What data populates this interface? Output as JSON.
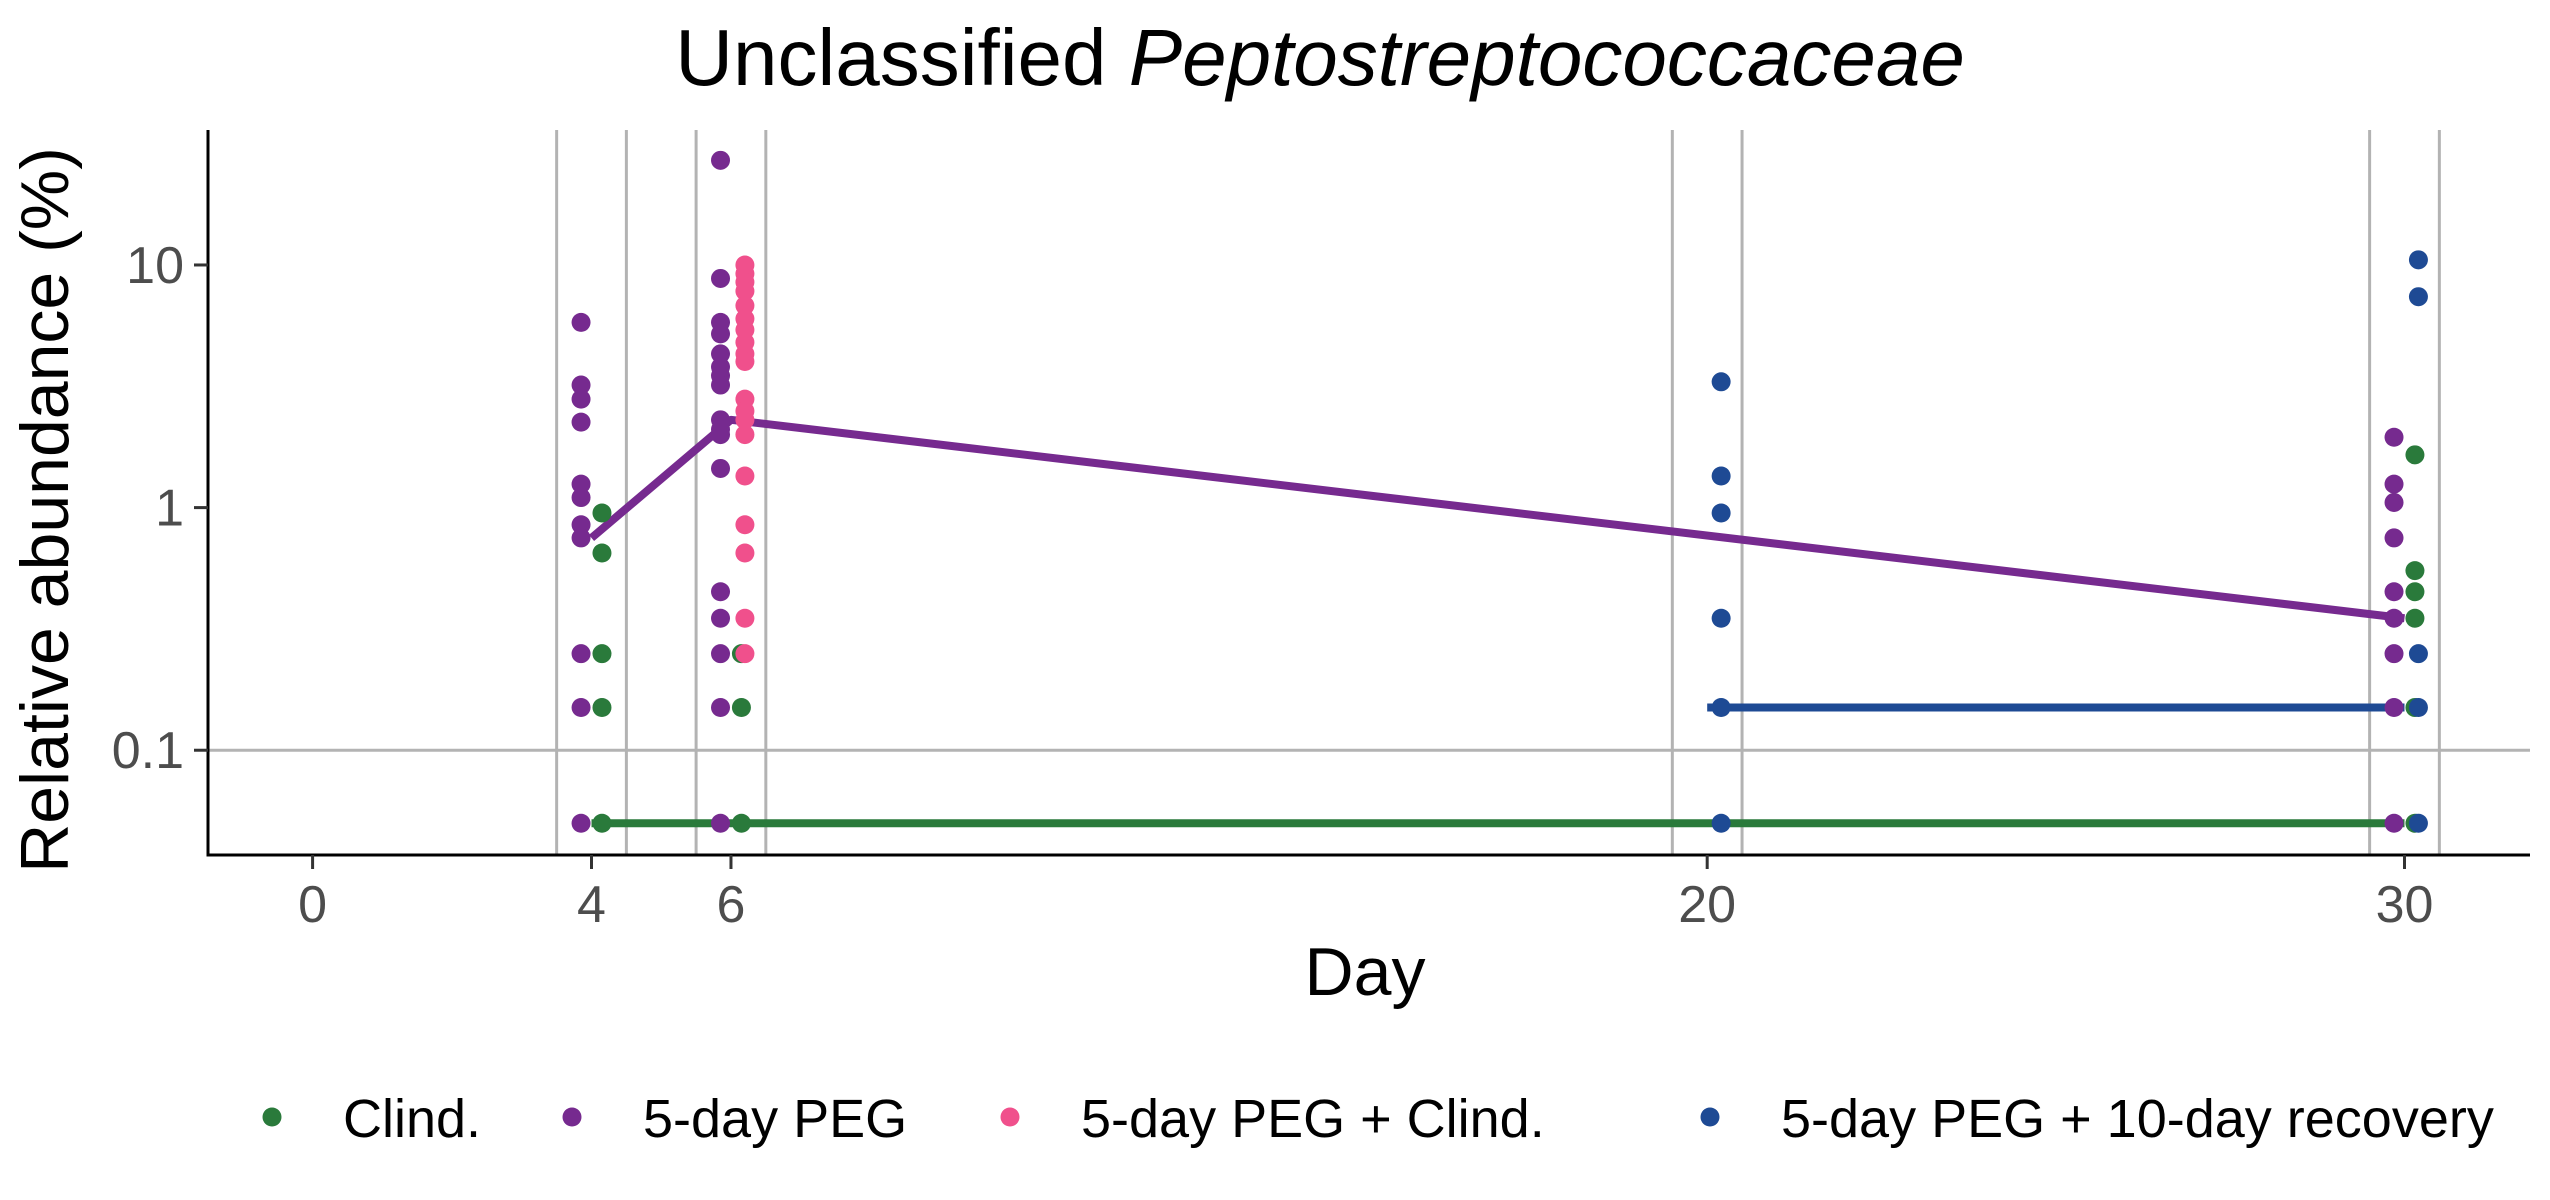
{
  "chart_data": {
    "type": "scatter",
    "title": "Unclassified",
    "title_italic": "Peptostreptococcaceae",
    "xlabel": "Day",
    "ylabel": "Relative abundance (%)",
    "x_ticks": [
      0,
      4,
      6,
      20,
      30
    ],
    "y_ticks": [
      0.1,
      1,
      10
    ],
    "y_tick_labels": [
      "0.1",
      "1",
      "10"
    ],
    "y_scale": "log",
    "xlim": [
      -1.5,
      31.8
    ],
    "ylim": [
      0.037,
      36
    ],
    "legend_position": "bottom",
    "vertical_gridlines_at_days": [
      3.5,
      4.5,
      5.5,
      6.5,
      19.5,
      20.5,
      29.5,
      30.5
    ],
    "horizontal_reference_line": 0.1,
    "series": [
      {
        "name": "Clind.",
        "color": "#2A7A3B",
        "x_offset": 0.15,
        "points": [
          [
            4,
            0.95
          ],
          [
            4,
            0.65
          ],
          [
            4,
            0.25
          ],
          [
            4,
            0.15
          ],
          [
            4,
            0.05
          ],
          [
            6,
            0.25
          ],
          [
            6,
            0.15
          ],
          [
            6,
            0.05
          ],
          [
            30,
            1.65
          ],
          [
            30,
            0.55
          ],
          [
            30,
            0.45
          ],
          [
            30,
            0.35
          ],
          [
            30,
            0.15
          ],
          [
            30,
            0.05
          ]
        ],
        "median_line": [
          [
            4,
            0.05
          ],
          [
            30,
            0.05
          ]
        ]
      },
      {
        "name": "5-day PEG",
        "color": "#762A8F",
        "x_offset": -0.15,
        "points": [
          [
            4,
            5.8
          ],
          [
            4,
            3.2
          ],
          [
            4,
            2.8
          ],
          [
            4,
            2.25
          ],
          [
            4,
            1.25
          ],
          [
            4,
            1.1
          ],
          [
            4,
            0.85
          ],
          [
            4,
            0.75
          ],
          [
            4,
            0.25
          ],
          [
            4,
            0.15
          ],
          [
            4,
            0.05
          ],
          [
            6,
            27
          ],
          [
            6,
            8.8
          ],
          [
            6,
            5.8
          ],
          [
            6,
            5.2
          ],
          [
            6,
            4.3
          ],
          [
            6,
            3.8
          ],
          [
            6,
            3.5
          ],
          [
            6,
            3.2
          ],
          [
            6,
            2.3
          ],
          [
            6,
            2.1
          ],
          [
            6,
            2.0
          ],
          [
            6,
            1.45
          ],
          [
            6,
            0.45
          ],
          [
            6,
            0.35
          ],
          [
            6,
            0.25
          ],
          [
            6,
            0.15
          ],
          [
            6,
            0.05
          ],
          [
            30,
            1.95
          ],
          [
            30,
            1.25
          ],
          [
            30,
            1.05
          ],
          [
            30,
            0.75
          ],
          [
            30,
            0.45
          ],
          [
            30,
            0.35
          ],
          [
            30,
            0.25
          ],
          [
            30,
            0.15
          ],
          [
            30,
            0.05
          ]
        ],
        "median_line": [
          [
            4,
            0.75
          ],
          [
            6,
            2.3
          ],
          [
            30,
            0.35
          ]
        ]
      },
      {
        "name": "5-day PEG + Clind.",
        "color": "#F0508C",
        "x_offset": 0.2,
        "points": [
          [
            6,
            10
          ],
          [
            6,
            9.2
          ],
          [
            6,
            8.5
          ],
          [
            6,
            7.8
          ],
          [
            6,
            6.8
          ],
          [
            6,
            6.0
          ],
          [
            6,
            5.4
          ],
          [
            6,
            4.8
          ],
          [
            6,
            4.3
          ],
          [
            6,
            4.0
          ],
          [
            6,
            2.8
          ],
          [
            6,
            2.5
          ],
          [
            6,
            2.3
          ],
          [
            6,
            2.0
          ],
          [
            6,
            1.35
          ],
          [
            6,
            0.85
          ],
          [
            6,
            0.65
          ],
          [
            6,
            0.35
          ],
          [
            6,
            0.25
          ]
        ]
      },
      {
        "name": "5-day PEG + 10-day recovery",
        "color": "#1E4A94",
        "x_offset": 0.2,
        "points": [
          [
            20,
            3.3
          ],
          [
            20,
            1.35
          ],
          [
            20,
            0.95
          ],
          [
            20,
            0.35
          ],
          [
            20,
            0.15
          ],
          [
            20,
            0.05
          ],
          [
            30,
            10.5
          ],
          [
            30,
            7.4
          ],
          [
            30,
            0.25
          ],
          [
            30,
            0.15
          ],
          [
            30,
            0.05
          ]
        ],
        "median_line": [
          [
            20,
            0.15
          ],
          [
            30,
            0.15
          ]
        ]
      }
    ]
  }
}
